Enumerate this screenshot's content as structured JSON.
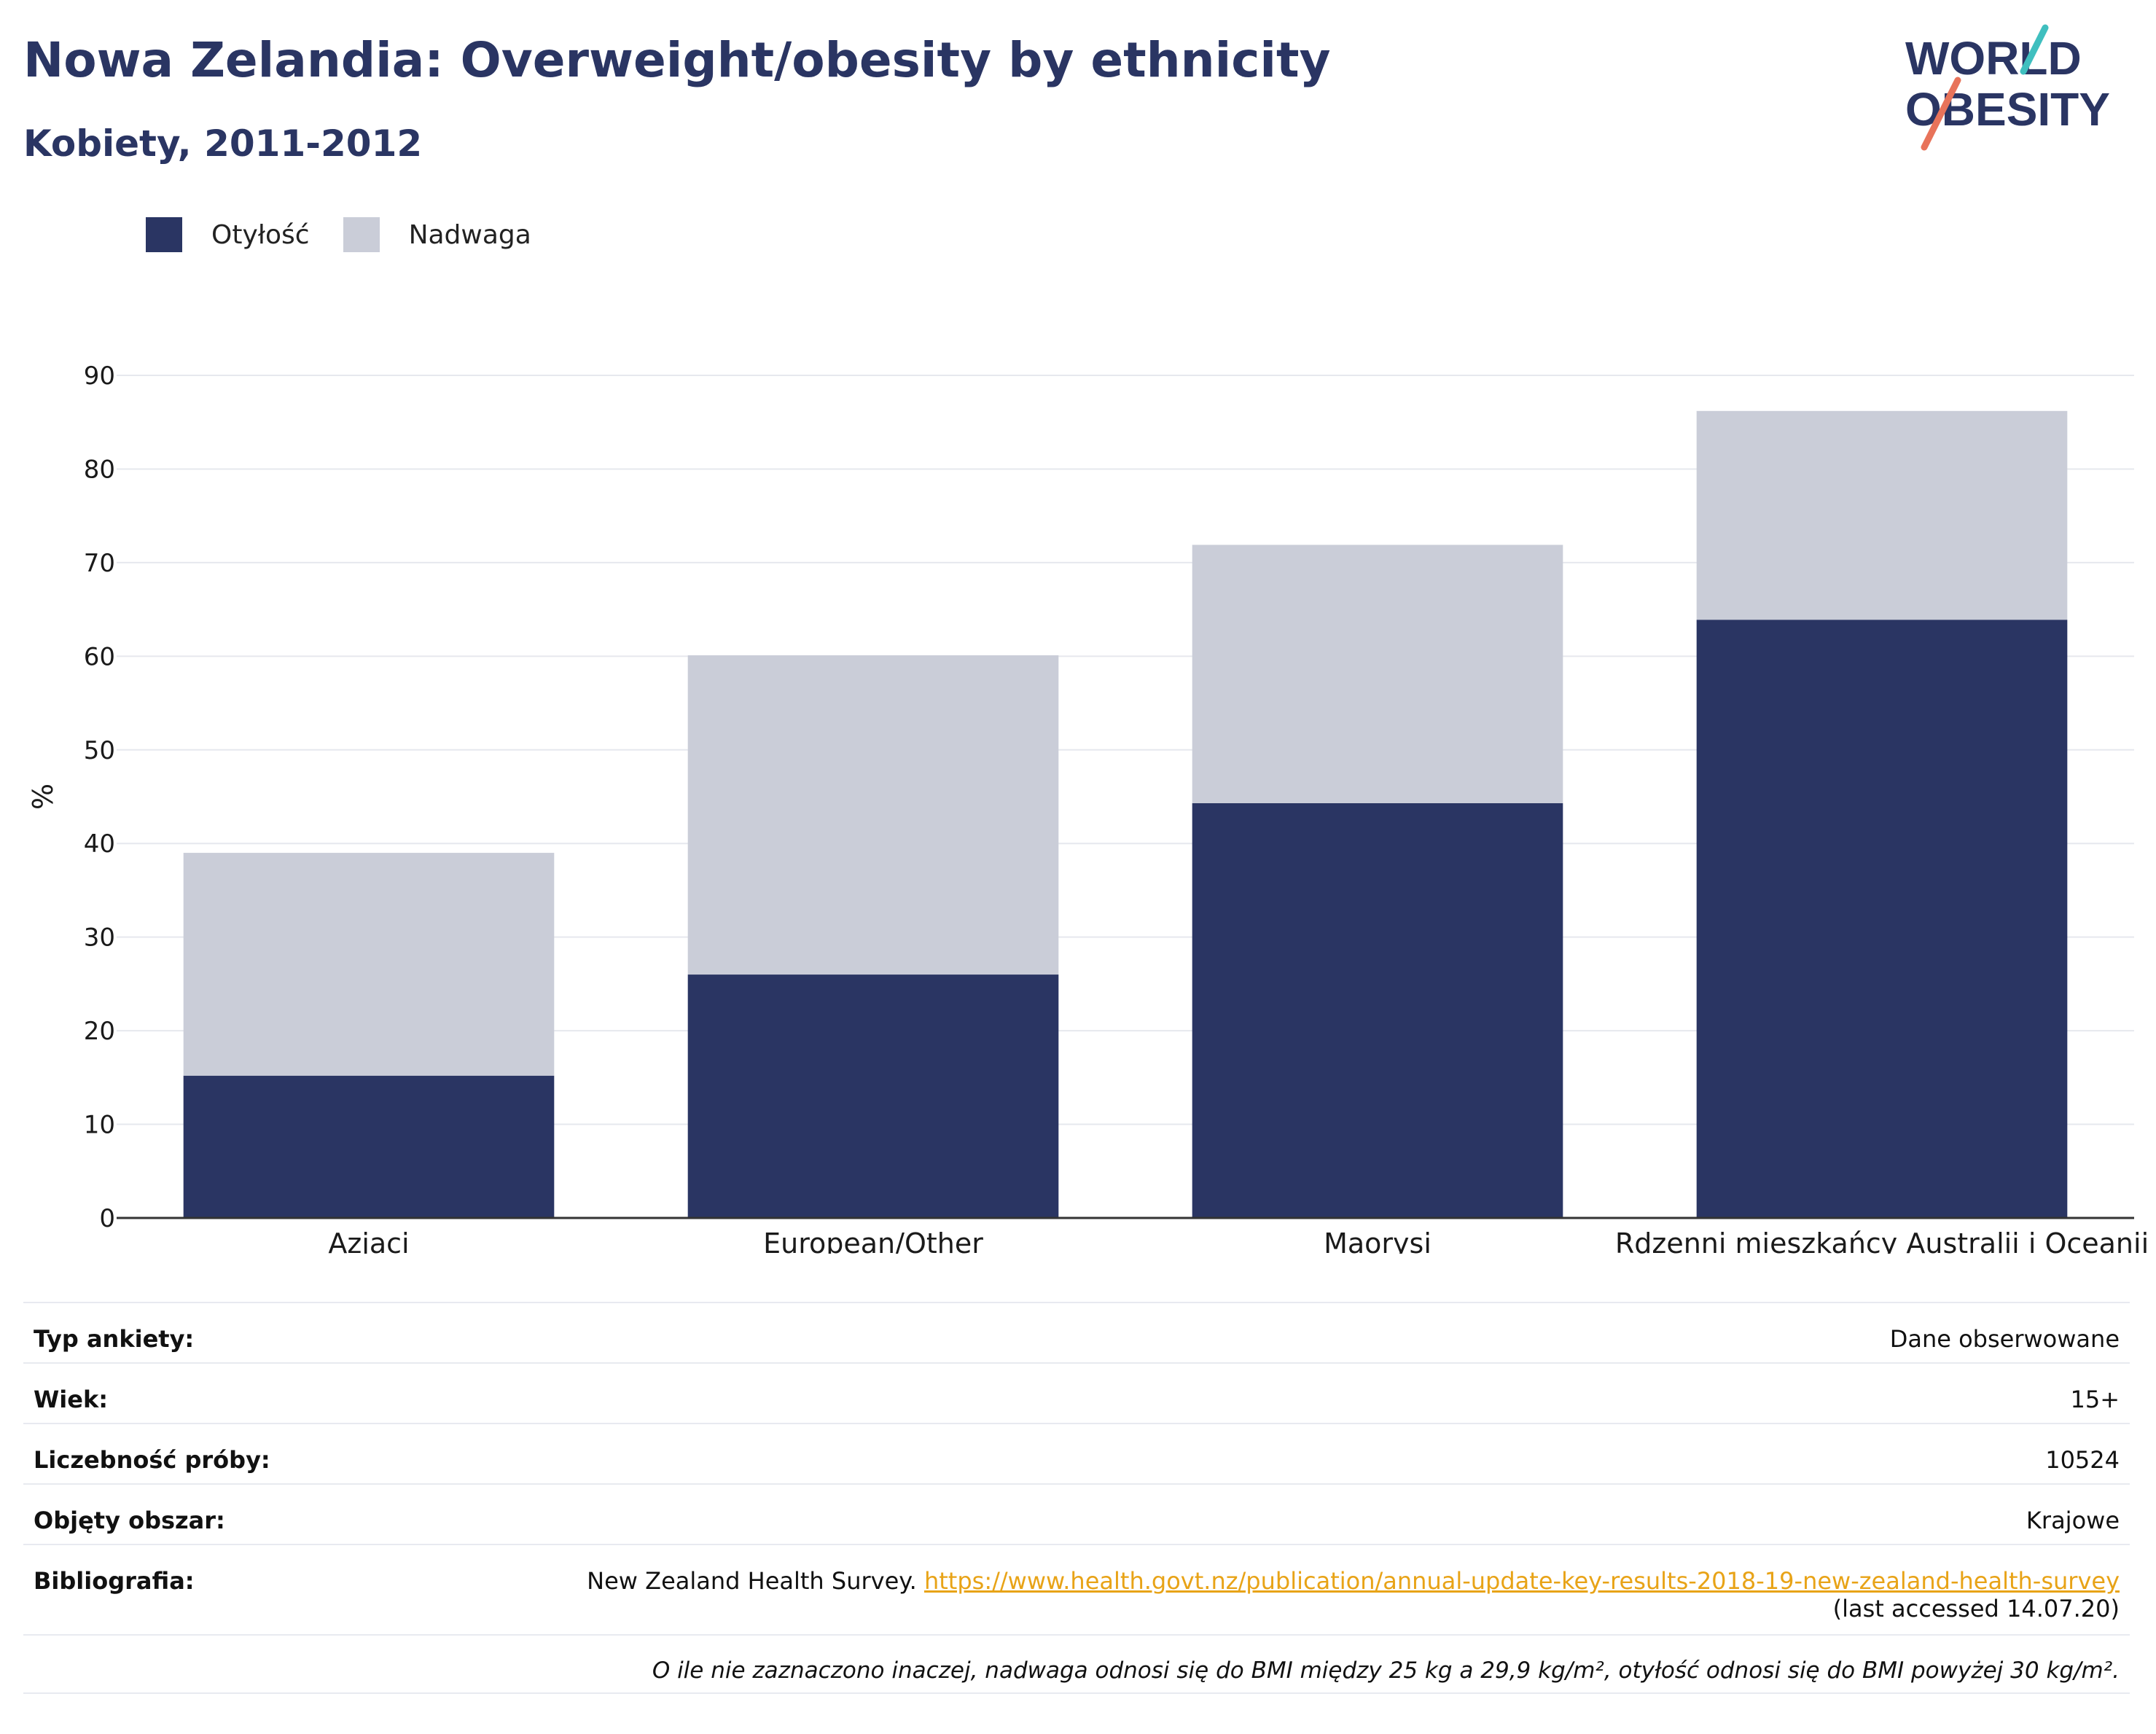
{
  "header": {
    "title": "Nowa Zelandia: Overweight/obesity by ethnicity",
    "subtitle": "Kobiety, 2011-2012"
  },
  "logo": {
    "line1": "WORLD",
    "line2": "OBESITY",
    "accent_teal": "#3fbfbf",
    "accent_coral": "#e8735a"
  },
  "legend": {
    "obesity": "Otyłość",
    "overweight": "Nadwaga"
  },
  "colors": {
    "obesity": "#2a3563",
    "overweight": "#cacdd8",
    "grid": "#e6e8ee",
    "axis": "#333333"
  },
  "chart_data": {
    "type": "bar",
    "stacked": true,
    "categories": [
      "Azjaci",
      "European/Other",
      "Maorysi",
      "Rdzenni mieszkańcy Australii i Oceanii"
    ],
    "series": [
      {
        "name": "Otyłość",
        "values": [
          15.2,
          26.0,
          44.3,
          63.9
        ]
      },
      {
        "name": "Nadwaga",
        "values": [
          23.8,
          34.1,
          27.6,
          22.3
        ]
      }
    ],
    "ylabel": "%",
    "ylim": [
      0,
      90
    ],
    "yticks": [
      "0",
      "10",
      "20",
      "30",
      "40",
      "50",
      "60",
      "70",
      "80",
      "90"
    ],
    "grid": true,
    "legend_position": "top-left"
  },
  "info": {
    "survey_type_label": "Typ ankiety:",
    "survey_type_value": "Dane obserwowane",
    "age_label": "Wiek:",
    "age_value": "15+",
    "sample_label": "Liczebność próby:",
    "sample_value": "10524",
    "area_label": "Objęty obszar:",
    "area_value": "Krajowe",
    "bib_label": "Bibliografia:",
    "bib_text": "New Zealand Health Survey.",
    "bib_link": "https://www.health.govt.nz/publication/annual-update-key-results-2018-19-new-zealand-health-survey",
    "bib_accessed": "(last accessed 14.07.20)",
    "note": "O ile nie zaznaczono inaczej, nadwaga odnosi się do BMI między 25 kg a 29,9 kg/m², otyłość odnosi się do BMI powyżej 30 kg/m²."
  }
}
